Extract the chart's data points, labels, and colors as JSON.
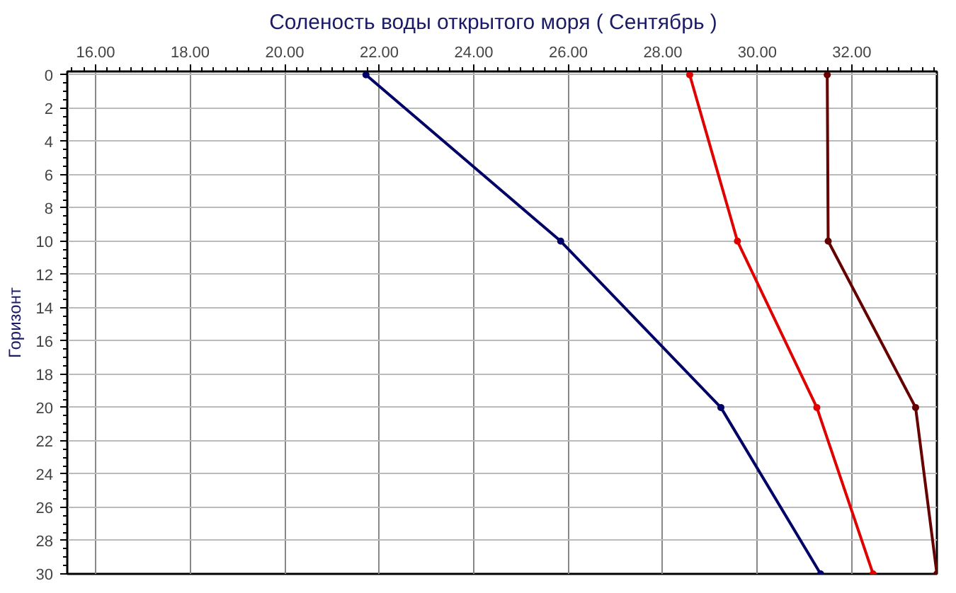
{
  "chart_data": {
    "type": "line",
    "title": "Соленость воды открытого моря    ( Сентябрь )",
    "ylabel": "Горизонт",
    "series": [
      {
        "color": "#000066",
        "values": [
          0,
          10,
          20,
          30
        ],
        "x": [
          21.72,
          25.84,
          29.23,
          31.34
        ]
      },
      {
        "color": "#e00000",
        "values": [
          0,
          10,
          20,
          30
        ],
        "x": [
          28.57,
          29.58,
          31.26,
          32.45
        ]
      },
      {
        "color": "#660000",
        "values": [
          0,
          10,
          20,
          30
        ],
        "x": [
          31.48,
          31.5,
          33.35,
          33.8
        ]
      }
    ],
    "xlim": [
      15.4,
      33.8
    ],
    "ylim": [
      30,
      -0.2
    ],
    "xticks": [
      {
        "value": 16,
        "label": "16.00"
      },
      {
        "value": 18,
        "label": "18.00"
      },
      {
        "value": 20,
        "label": "20.00"
      },
      {
        "value": 22,
        "label": "22.00"
      },
      {
        "value": 24,
        "label": "24.00"
      },
      {
        "value": 26,
        "label": "26.00"
      },
      {
        "value": 28,
        "label": "28.00"
      },
      {
        "value": 30,
        "label": "30.00"
      },
      {
        "value": 32,
        "label": "32.00"
      }
    ],
    "yticks": [
      0,
      2,
      4,
      6,
      8,
      10,
      12,
      14,
      16,
      18,
      20,
      22,
      24,
      26,
      28,
      30
    ],
    "grid": true,
    "marker": "circle",
    "line_style": "solid"
  }
}
